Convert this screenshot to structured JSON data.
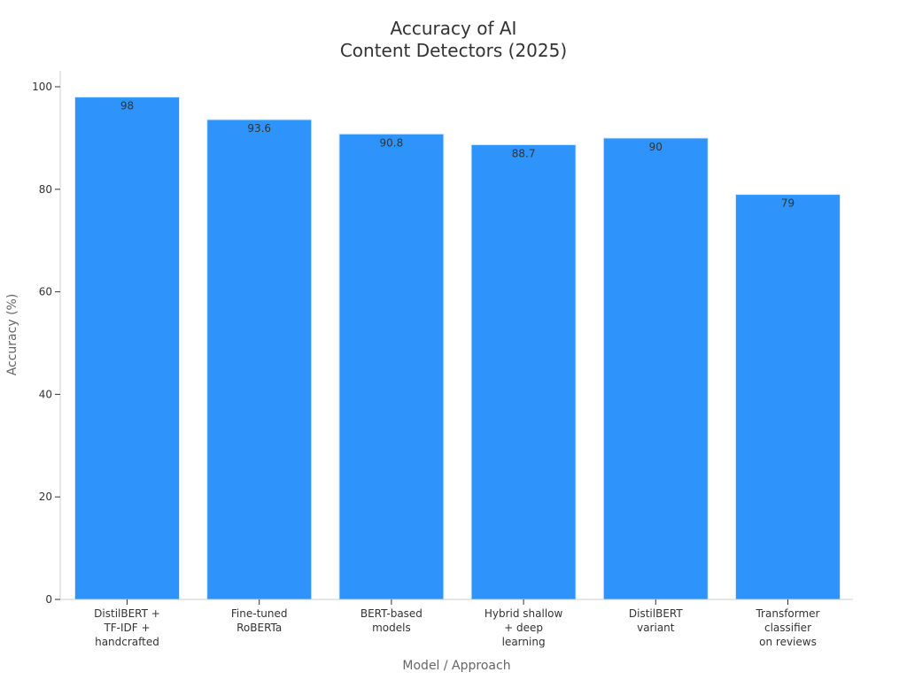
{
  "chart_data": {
    "type": "bar",
    "title_lines": [
      "Accuracy of AI",
      "Content Detectors (2025)"
    ],
    "xlabel": "Model / Approach",
    "ylabel": "Accuracy (%)",
    "ylim": [
      0,
      100
    ],
    "yticks": [
      0,
      20,
      40,
      60,
      80,
      100
    ],
    "categories": [
      [
        "DistilBERT +",
        "TF-IDF +",
        "handcrafted"
      ],
      [
        "Fine-tuned",
        "RoBERTa"
      ],
      [
        "BERT-based",
        "models"
      ],
      [
        "Hybrid shallow",
        "+ deep",
        "learning"
      ],
      [
        "DistilBERT",
        "variant"
      ],
      [
        "Transformer",
        "classifier",
        "on reviews"
      ]
    ],
    "values": [
      98,
      93.6,
      90.8,
      88.7,
      90,
      79
    ],
    "value_labels": [
      "98",
      "93.6",
      "90.8",
      "88.7",
      "90",
      "79"
    ],
    "bar_color": "#2E93FA",
    "bar_edge_color": "#D6E9FF",
    "axis_color": "#CCCCCC",
    "grid": false,
    "legend": "none"
  }
}
